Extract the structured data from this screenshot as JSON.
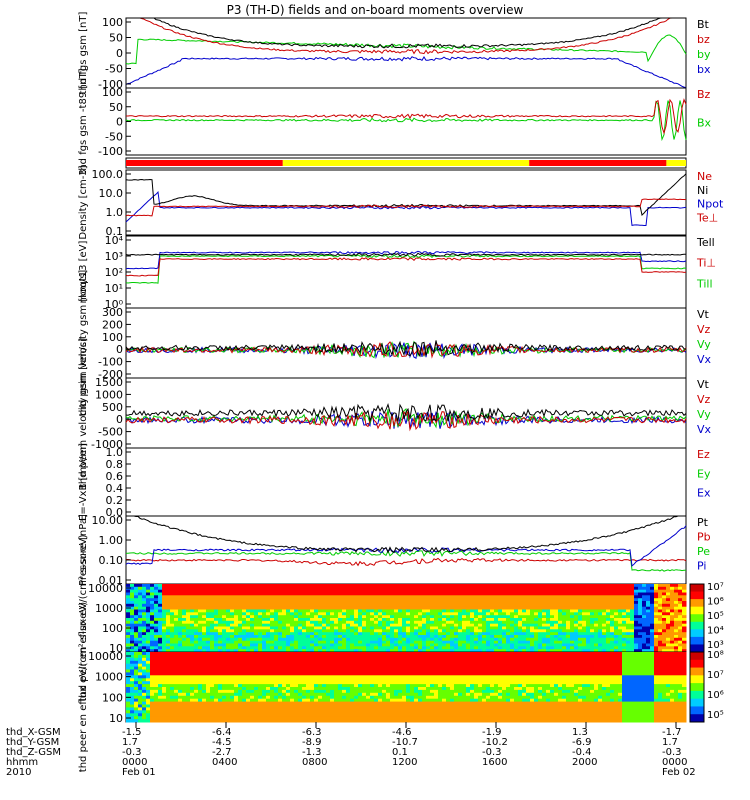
{
  "title": "P3 (TH-D) fields and on-board moments overview",
  "bottom": {
    "rows": [
      {
        "label": "thd_X-GSM",
        "values": [
          "-1.5",
          "-6.4",
          "-6.3",
          "-4.6",
          "-1.9",
          "1.3",
          "-1.7"
        ]
      },
      {
        "label": "thd_Y-GSM",
        "values": [
          "1.7",
          "-4.5",
          "-8.9",
          "-10.7",
          "-10.2",
          "-6.9",
          "1.7"
        ]
      },
      {
        "label": "thd_Z-GSM",
        "values": [
          "-0.3",
          "-2.7",
          "-1.3",
          "0.1",
          "-0.3",
          "-0.4",
          "-0.3"
        ]
      },
      {
        "label": "hhmm",
        "values": [
          "0000",
          "0400",
          "0800",
          "1200",
          "1600",
          "2000",
          "0000"
        ]
      },
      {
        "label": "2010",
        "values": [
          "Feb 01",
          "",
          "",
          "",
          "",
          "",
          "Feb 02"
        ]
      }
    ]
  },
  "chart_data": [
    {
      "type": "line",
      "ylabel": "thd fgs gsm [nT]",
      "yticks": [
        "100",
        "50",
        "0",
        "-50",
        "-100"
      ],
      "ylim": [
        -100,
        100
      ],
      "legend": [
        {
          "name": "Bt",
          "color": "#000000"
        },
        {
          "name": "bz",
          "color": "#cc0000"
        },
        {
          "name": "by",
          "color": "#00cc00"
        },
        {
          "name": "bx",
          "color": "#0000cc"
        }
      ]
    },
    {
      "type": "line",
      "ylabel": "thd fgs gsm -t89 [nT]",
      "yticks": [
        "100",
        "50",
        "0",
        "-50",
        "-100"
      ],
      "ylim": [
        -120,
        100
      ],
      "legend": [
        {
          "name": "Bz",
          "color": "#cc0000"
        },
        {
          "name": "Bx",
          "color": "#00cc00"
        }
      ]
    },
    {
      "type": "bar",
      "ylabel": "",
      "legend": []
    },
    {
      "type": "line",
      "ylabel": "Density [cm-3]",
      "yticks": [
        "100.0",
        "10.0",
        "1.0",
        "0.1"
      ],
      "log": true,
      "legend": [
        {
          "name": "Ne",
          "color": "#cc0000"
        },
        {
          "name": "Ni",
          "color": "#000000"
        },
        {
          "name": "Npot",
          "color": "#0000cc"
        },
        {
          "name": "Te⊥",
          "color": "#cc0000"
        }
      ]
    },
    {
      "type": "line",
      "ylabel": "moqt13 [eV]",
      "yticks": [
        "10⁴",
        "10³",
        "10²",
        "10¹",
        "10⁰"
      ],
      "log": true,
      "legend": [
        {
          "name": "Tell",
          "color": "#000000"
        },
        {
          "name": "Ti⊥",
          "color": "#cc0000"
        },
        {
          "name": "Till",
          "color": "#00cc00"
        }
      ]
    },
    {
      "type": "line",
      "ylabel": "thd peim velocity gsm [km/s]",
      "yticks": [
        "300",
        "200",
        "100",
        "0",
        "-100",
        "-200"
      ],
      "ylim": [
        -200,
        300
      ],
      "legend": [
        {
          "name": "Vt",
          "color": "#000000"
        },
        {
          "name": "Vz",
          "color": "#cc0000"
        },
        {
          "name": "Vy",
          "color": "#00cc00"
        },
        {
          "name": "Vx",
          "color": "#0000cc"
        }
      ]
    },
    {
      "type": "line",
      "ylabel": "thd peem velocity gsm [km/s]",
      "yticks": [
        "1500",
        "1000",
        "500",
        "0",
        "-500",
        "-1000"
      ],
      "ylim": [
        -1000,
        1500
      ],
      "legend": [
        {
          "name": "Vt",
          "color": "#000000"
        },
        {
          "name": "Vz",
          "color": "#cc0000"
        },
        {
          "name": "Vy",
          "color": "#00cc00"
        },
        {
          "name": "Vx",
          "color": "#0000cc"
        }
      ]
    },
    {
      "type": "line",
      "ylabel": "E=-VxB [mV/m]",
      "yticks": [
        "1.0",
        "0.8",
        "0.6",
        "0.4",
        "0.2",
        "0.0"
      ],
      "ylim": [
        0,
        1
      ],
      "legend": [
        {
          "name": "Ez",
          "color": "#cc0000"
        },
        {
          "name": "Ey",
          "color": "#00cc00"
        },
        {
          "name": "Ex",
          "color": "#0000cc"
        }
      ]
    },
    {
      "type": "line",
      "ylabel": "Pressure [nPa]",
      "yticks": [
        "10.00",
        "1.00",
        "0.10",
        "0.01"
      ],
      "log": true,
      "legend": [
        {
          "name": "Pt",
          "color": "#000000"
        },
        {
          "name": "Pb",
          "color": "#cc0000"
        },
        {
          "name": "Pe",
          "color": "#00cc00"
        },
        {
          "name": "Pi",
          "color": "#0000cc"
        }
      ]
    },
    {
      "type": "heatmap",
      "ylabel": "thd peir en eflux eV/(cm²-s-sr-eV)",
      "yticks": [
        "10000",
        "1000",
        "100",
        "10"
      ],
      "log": true,
      "colorbar": [
        "10⁷",
        "10⁶",
        "10⁵",
        "10⁴",
        "10³"
      ],
      "legend": []
    },
    {
      "type": "heatmap",
      "ylabel": "thd peer en eflux eV/(cm²-s-sr-eV)",
      "yticks": [
        "10000",
        "1000",
        "100",
        "10"
      ],
      "log": true,
      "colorbar": [
        "10⁸",
        "10⁷",
        "10⁶",
        "10⁵"
      ],
      "legend": []
    }
  ]
}
